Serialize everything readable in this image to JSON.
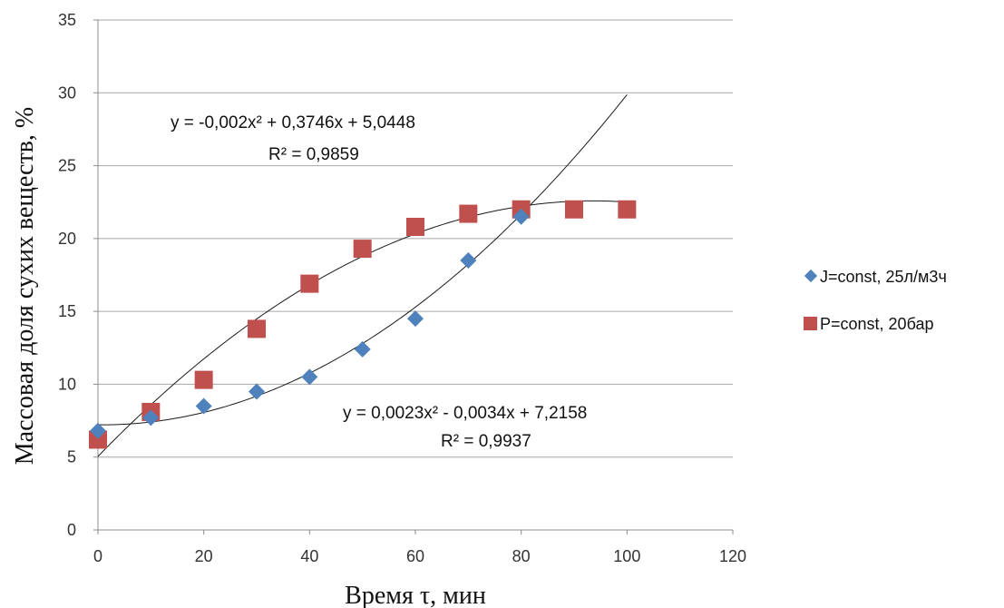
{
  "chart_data": {
    "type": "scatter",
    "xlabel": "Время τ, мин",
    "ylabel": "Массовая доля сухих веществ, %",
    "xlim": [
      0,
      120
    ],
    "ylim": [
      0,
      35
    ],
    "x_ticks": [
      0,
      20,
      40,
      60,
      80,
      100,
      120
    ],
    "y_ticks": [
      0,
      5,
      10,
      15,
      20,
      25,
      30,
      35
    ],
    "grid": "horizontal",
    "legend_position": "right",
    "series": [
      {
        "name": "J=const, 25л/м3ч",
        "marker": "diamond",
        "color": "#4F81BD",
        "x": [
          0,
          10,
          20,
          30,
          40,
          50,
          60,
          70,
          80
        ],
        "y": [
          6.8,
          7.7,
          8.5,
          9.5,
          10.5,
          12.4,
          14.5,
          18.5,
          21.5
        ],
        "trendline": {
          "type": "polynomial",
          "coefficients": [
            0.0023,
            -0.0034,
            7.2158
          ],
          "x_range": [
            0,
            100
          ],
          "equation": "y = 0,0023x² - 0,0034x + 7,2158",
          "r2": "R² = 0,9937"
        }
      },
      {
        "name": "P=const, 20бар",
        "marker": "square",
        "color": "#C0504D",
        "x": [
          0,
          10,
          20,
          30,
          40,
          50,
          60,
          70,
          80,
          90,
          100
        ],
        "y": [
          6.2,
          8.1,
          10.3,
          13.8,
          16.9,
          19.3,
          20.8,
          21.7,
          22.0,
          22.0,
          22.0
        ],
        "trendline": {
          "type": "polynomial",
          "coefficients": [
            -0.002,
            0.3746,
            5.0448
          ],
          "x_range": [
            0,
            100
          ],
          "equation": "y = -0,002x² + 0,3746x + 5,0448",
          "r2": "R² = 0,9859"
        }
      }
    ]
  }
}
